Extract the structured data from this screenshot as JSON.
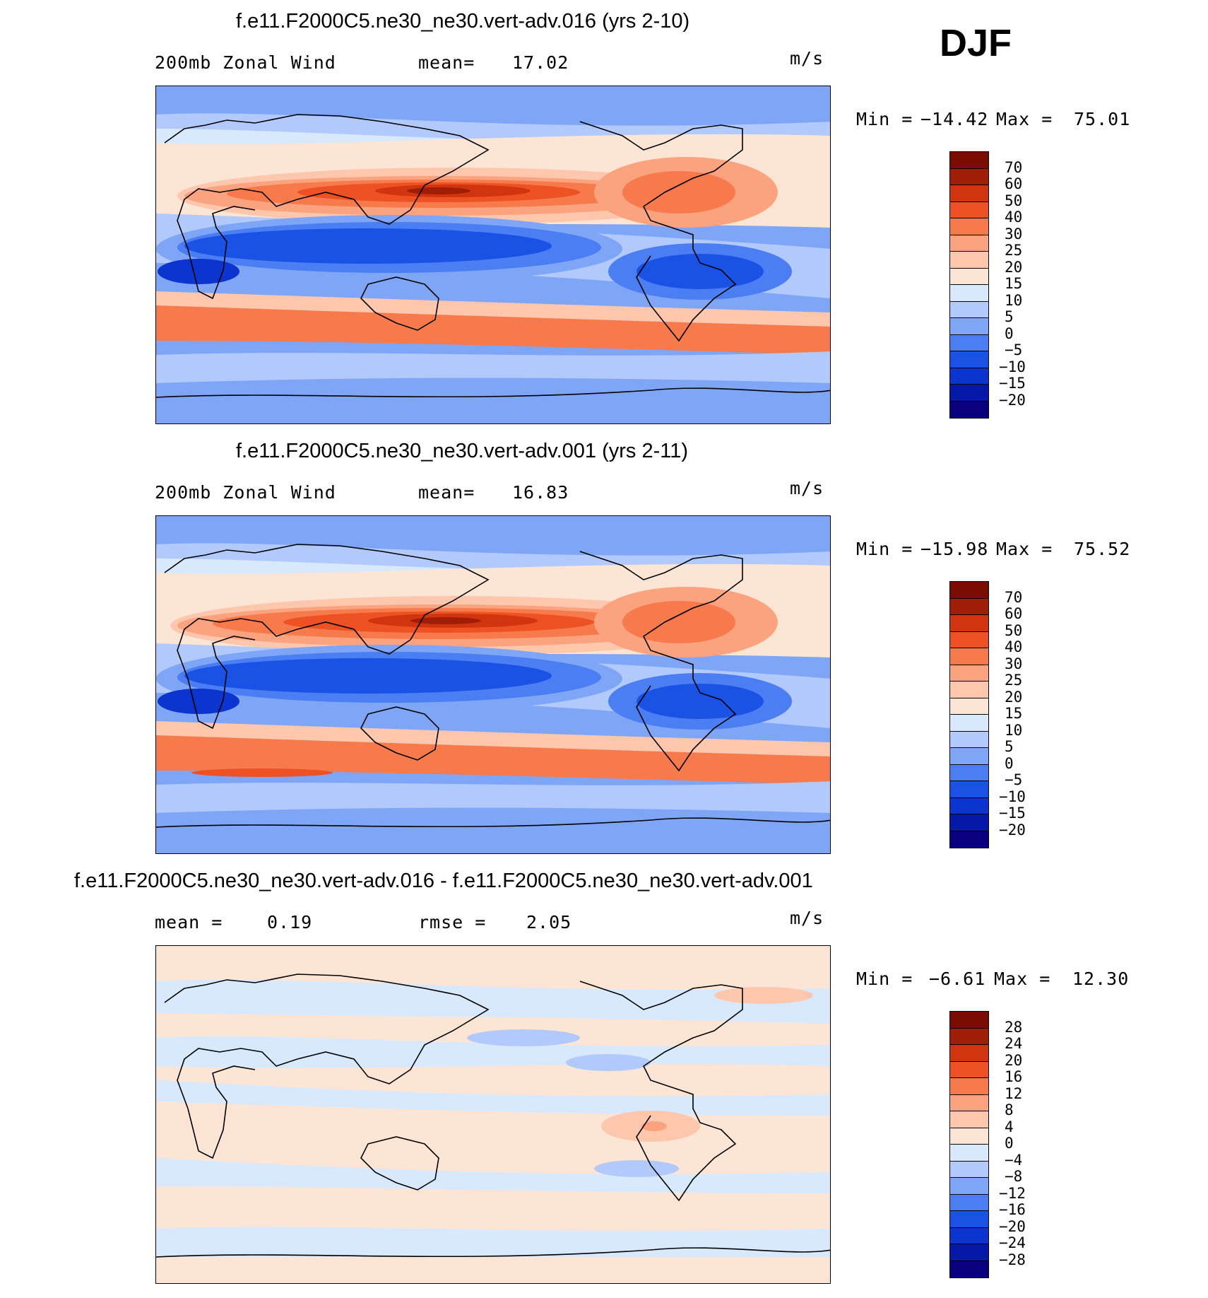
{
  "season": "DJF",
  "units": "m/s",
  "colors": {
    "abs_scale": [
      "#08007e",
      "#0518a8",
      "#0c35cf",
      "#1a52e6",
      "#4b7ef2",
      "#7fa5f7",
      "#b1cafb",
      "#d8e8fd",
      "#fde5d5",
      "#fcc7ad",
      "#fba27e",
      "#f77a4c",
      "#ee5224",
      "#d03510",
      "#a01d06",
      "#7a0c00"
    ],
    "diff_scale": [
      "#08007e",
      "#0518a8",
      "#0c35cf",
      "#1a52e6",
      "#4b7ef2",
      "#7fa5f7",
      "#b1cafb",
      "#d8e8fd",
      "#fde5d5",
      "#fcc7ad",
      "#fba27e",
      "#f77a4c",
      "#ee5224",
      "#d03510",
      "#a01d06",
      "#7a0c00"
    ]
  },
  "chart_data": [
    {
      "type": "heatmap",
      "title": "f.e11.F2000C5.ne30_ne30.vert-adv.016 (yrs 2-10)",
      "variable": "200mb Zonal Wind",
      "stat_label": "mean=",
      "stat_value": "17.02",
      "units": "m/s",
      "min_label": "Min =",
      "min_value": "−14.42",
      "max_label": "Max =",
      "max_value": "75.01",
      "colorbar_ticks": [
        "70",
        "60",
        "50",
        "40",
        "30",
        "25",
        "20",
        "15",
        "10",
        "5",
        "0",
        "−5",
        "−10",
        "−15",
        "−20"
      ]
    },
    {
      "type": "heatmap",
      "title": "f.e11.F2000C5.ne30_ne30.vert-adv.001 (yrs 2-11)",
      "variable": "200mb Zonal Wind",
      "stat_label": "mean=",
      "stat_value": "16.83",
      "units": "m/s",
      "min_label": "Min =",
      "min_value": "−15.98",
      "max_label": "Max =",
      "max_value": "75.52",
      "colorbar_ticks": [
        "70",
        "60",
        "50",
        "40",
        "30",
        "25",
        "20",
        "15",
        "10",
        "5",
        "0",
        "−5",
        "−10",
        "−15",
        "−20"
      ]
    },
    {
      "type": "heatmap",
      "title": "f.e11.F2000C5.ne30_ne30.vert-adv.016 - f.e11.F2000C5.ne30_ne30.vert-adv.001",
      "mean_label": "mean =",
      "mean_value": "0.19",
      "rmse_label": "rmse =",
      "rmse_value": "2.05",
      "units": "m/s",
      "min_label": "Min =",
      "min_value": "−6.61",
      "max_label": "Max =",
      "max_value": "12.30",
      "colorbar_ticks": [
        "28",
        "24",
        "20",
        "16",
        "12",
        "8",
        "4",
        "0",
        "−4",
        "−8",
        "−12",
        "−16",
        "−20",
        "−24",
        "−28"
      ]
    }
  ]
}
